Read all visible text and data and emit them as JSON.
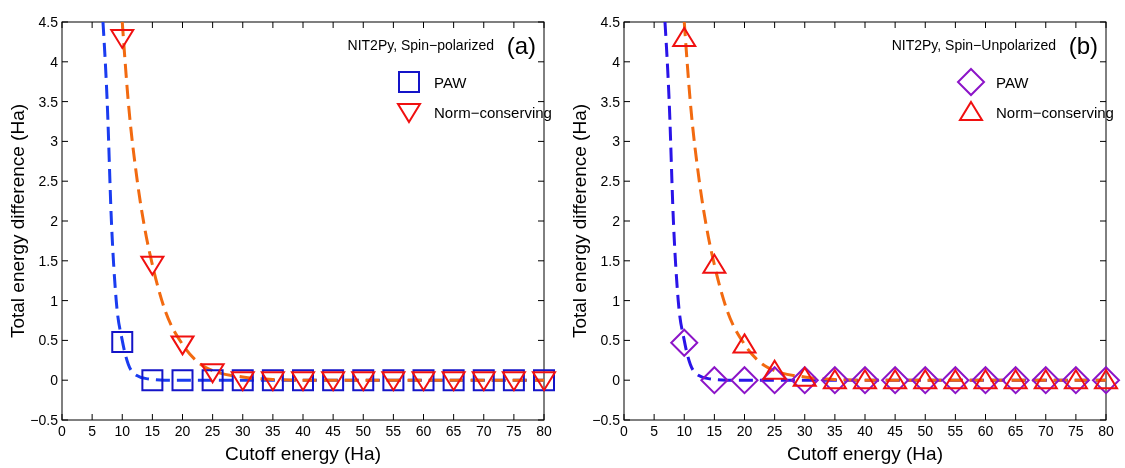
{
  "chart_data": [
    {
      "type": "scatter",
      "xlabel": "Cutoff energy (Ha)",
      "ylabel": "Total energy difference (Ha)",
      "legend_title": "NIT2Py, Spin−polarized",
      "annotations": [
        "(a)"
      ],
      "legend": "top right",
      "grid": false,
      "xlim": [
        0,
        80
      ],
      "xticks": [
        0,
        5,
        10,
        15,
        20,
        25,
        30,
        35,
        40,
        45,
        50,
        55,
        60,
        65,
        70,
        75,
        80
      ],
      "ylim": [
        -0.5,
        4.5
      ],
      "yticks": [
        -0.5,
        0,
        0.5,
        1,
        1.5,
        2,
        2.5,
        3,
        3.5,
        4,
        4.5
      ],
      "x": [
        10,
        15,
        20,
        25,
        30,
        35,
        40,
        45,
        50,
        55,
        60,
        65,
        70,
        75,
        80
      ],
      "series": [
        {
          "type": "line",
          "line_style": "dashed",
          "marker": "none",
          "color": "#1a3cf0",
          "x": [
            6.8,
            7.5,
            8.2,
            9,
            10,
            11,
            12,
            14,
            17,
            80
          ],
          "values": [
            4.5,
            3.5,
            2,
            1,
            0.5,
            0.2,
            0.08,
            0.02,
            0,
            0
          ]
        },
        {
          "type": "line",
          "line_style": "dashed",
          "marker": "none",
          "color": "#f26a10",
          "x": [
            10,
            11,
            12.5,
            14,
            15,
            17,
            20,
            23,
            25,
            30,
            35,
            40,
            80
          ],
          "values": [
            4.5,
            3.5,
            2.5,
            1.8,
            1.45,
            0.9,
            0.45,
            0.2,
            0.12,
            0.04,
            0.01,
            0,
            0
          ]
        },
        {
          "name": "PAW",
          "marker": "square",
          "color": "#1414c8",
          "values": [
            0.48,
            0,
            0,
            0,
            0,
            0,
            0,
            0,
            0,
            0,
            0,
            0,
            0,
            0,
            0
          ]
        },
        {
          "name": "Norm−conserving",
          "marker": "triangle-down",
          "color": "#f01010",
          "values": [
            4.3,
            1.45,
            0.45,
            0.1,
            0,
            0,
            0,
            0,
            0,
            0,
            0,
            0,
            0,
            0,
            0
          ]
        }
      ]
    },
    {
      "type": "scatter",
      "xlabel": "Cutoff energy (Ha)",
      "ylabel": "Total energy difference (Ha)",
      "legend_title": "NIT2Py, Spin−Unpolarized",
      "annotations": [
        "(b)"
      ],
      "legend": "top right",
      "grid": false,
      "xlim": [
        0,
        80
      ],
      "xticks": [
        0,
        5,
        10,
        15,
        20,
        25,
        30,
        35,
        40,
        45,
        50,
        55,
        60,
        65,
        70,
        75,
        80
      ],
      "ylim": [
        -0.5,
        4.5
      ],
      "yticks": [
        -0.5,
        0,
        0.5,
        1,
        1.5,
        2,
        2.5,
        3,
        3.5,
        4,
        4.5
      ],
      "x": [
        10,
        15,
        20,
        25,
        30,
        35,
        40,
        45,
        50,
        55,
        60,
        65,
        70,
        75,
        80
      ],
      "series": [
        {
          "type": "line",
          "line_style": "dashed",
          "marker": "none",
          "color": "#2a14e8",
          "x": [
            6.8,
            7.5,
            8.2,
            9,
            10,
            11,
            12,
            14,
            17,
            80
          ],
          "values": [
            4.5,
            3.5,
            2,
            1,
            0.5,
            0.2,
            0.08,
            0.02,
            0,
            0
          ]
        },
        {
          "type": "line",
          "line_style": "dashed",
          "marker": "none",
          "color": "#f26a10",
          "x": [
            10,
            11,
            12.5,
            14,
            15,
            17,
            20,
            23,
            25,
            30,
            35,
            40,
            80
          ],
          "values": [
            4.5,
            3.5,
            2.5,
            1.8,
            1.45,
            0.9,
            0.45,
            0.2,
            0.12,
            0.04,
            0.01,
            0,
            0
          ]
        },
        {
          "name": "PAW",
          "marker": "diamond",
          "color": "#8c14c8",
          "values": [
            0.47,
            0,
            0,
            0,
            0,
            0,
            0,
            0,
            0,
            0,
            0,
            0,
            0,
            0,
            0
          ]
        },
        {
          "name": "Norm−conserving",
          "marker": "triangle",
          "color": "#f01010",
          "values": [
            4.3,
            1.45,
            0.45,
            0.12,
            0.03,
            0,
            0,
            0,
            0,
            0,
            0,
            0,
            0,
            0,
            0
          ]
        }
      ]
    }
  ]
}
